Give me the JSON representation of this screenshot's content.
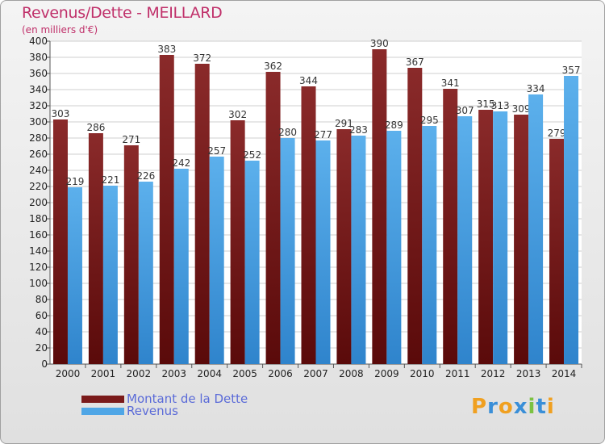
{
  "chart_data": {
    "type": "bar",
    "title": "Revenus/Dette - MEILLARD",
    "subtitle": "(en milliers d'€)",
    "categories": [
      "2000",
      "2001",
      "2002",
      "2003",
      "2004",
      "2005",
      "2006",
      "2007",
      "2008",
      "2009",
      "2010",
      "2011",
      "2012",
      "2013",
      "2014"
    ],
    "series": [
      {
        "name": "Montant de la Dette",
        "color": "#7a1a1a",
        "values": [
          303,
          286,
          271,
          383,
          372,
          302,
          362,
          344,
          291,
          390,
          367,
          341,
          315,
          309,
          279
        ]
      },
      {
        "name": "Revenus",
        "color": "#4fa6e6",
        "values": [
          219,
          221,
          226,
          242,
          257,
          252,
          280,
          277,
          283,
          289,
          295,
          307,
          313,
          334,
          357
        ]
      }
    ],
    "ylim": [
      0,
      400
    ],
    "ytick_step": 20,
    "grid": true,
    "legend_position": "bottom-left"
  },
  "logo": {
    "text": "Proxiti",
    "colors": [
      "#f0a020",
      "#3a8fd8",
      "#f0a020",
      "#3a8fd8",
      "#7cc242",
      "#3a8fd8",
      "#f0a020"
    ]
  }
}
